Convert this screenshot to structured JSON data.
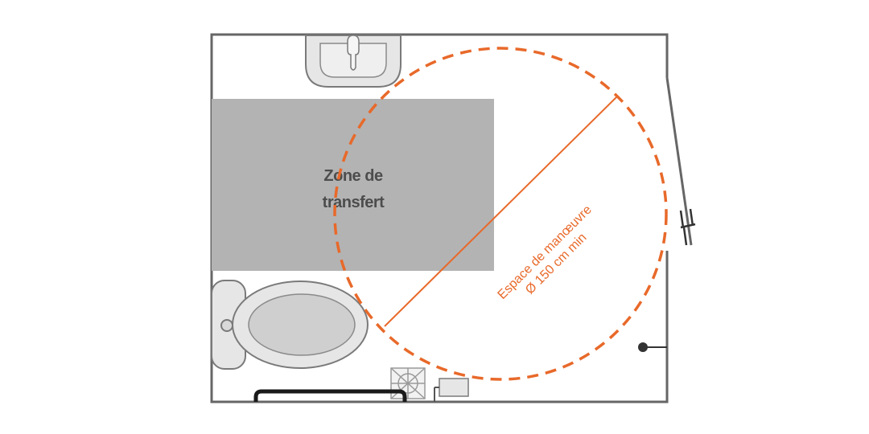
{
  "diagram": {
    "transfer_zone": {
      "label_line1": "Zone de",
      "label_line2": "transfert",
      "color": "#b3b3b3"
    },
    "maneuver_space": {
      "label_line1": "Espace de manœuvre",
      "label_line2": "Ø 150 cm min",
      "color": "#e8692a"
    },
    "colors": {
      "wall": "#666666",
      "fixture_fill": "#e6e6e6",
      "fixture_stroke": "#7a7a7a",
      "grab_bar": "#1a1a1a"
    }
  }
}
